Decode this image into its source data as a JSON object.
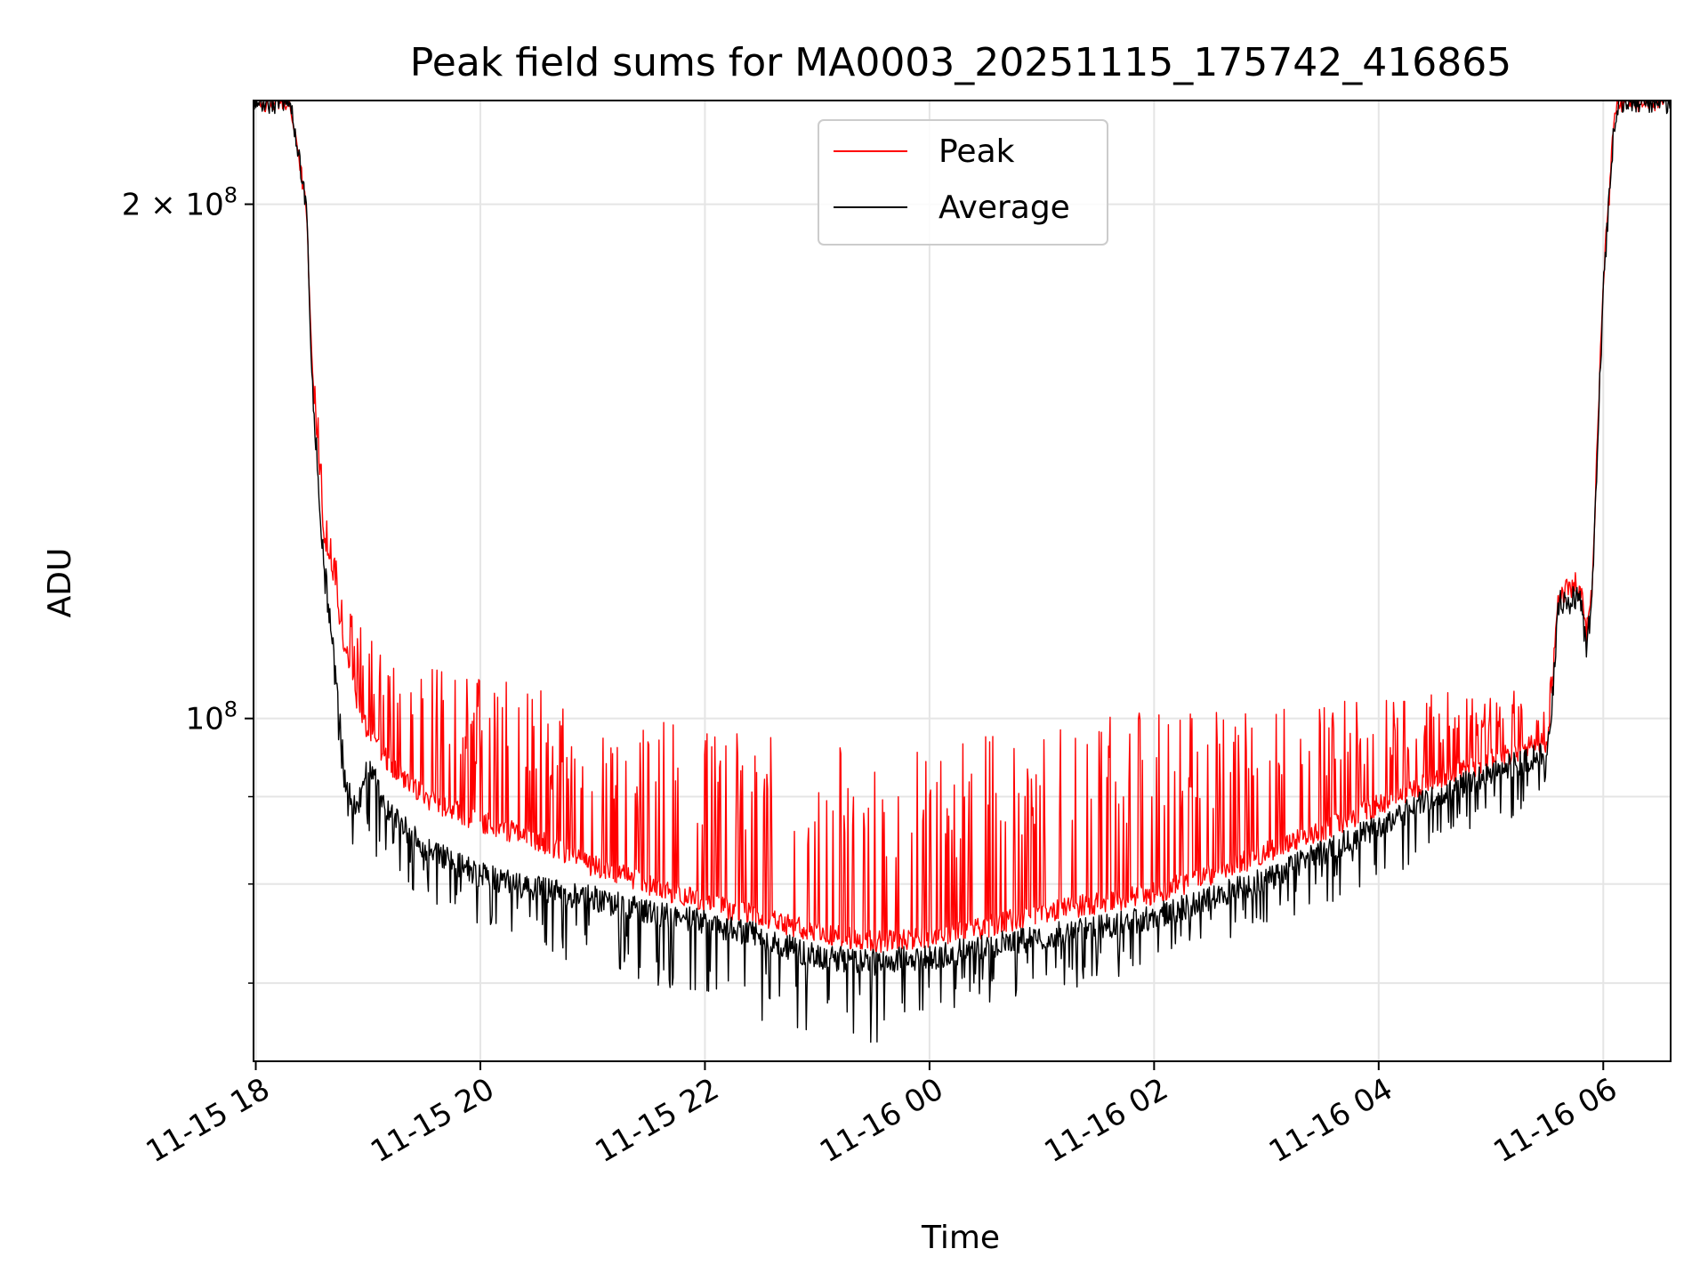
{
  "chart_data": {
    "type": "line",
    "title": "Peak field sums for MA0003_20251115_175742_416865",
    "xlabel": "Time",
    "ylabel": "ADU",
    "y_scale": "log",
    "ylim": [
      63000000,
      230000000
    ],
    "xlim_hours": [
      -0.02,
      12.6
    ],
    "x_ticks": [
      {
        "hour": 0,
        "label": "11-15 18"
      },
      {
        "hour": 2,
        "label": "11-15 20"
      },
      {
        "hour": 4,
        "label": "11-15 22"
      },
      {
        "hour": 6,
        "label": "11-16 00"
      },
      {
        "hour": 8,
        "label": "11-16 02"
      },
      {
        "hour": 10,
        "label": "11-16 04"
      },
      {
        "hour": 12,
        "label": "11-16 06"
      }
    ],
    "y_major_ticks": [
      {
        "value": 100000000,
        "base": "10",
        "exp": "8",
        "coef": ""
      },
      {
        "value": 200000000,
        "base": "10",
        "exp": "8",
        "coef": "2 × "
      }
    ],
    "y_minor_ticks": [
      70000000,
      80000000,
      90000000
    ],
    "legend": {
      "position": "upper center",
      "entries": [
        {
          "label": "Peak",
          "color": "#ff0000"
        },
        {
          "label": "Average",
          "color": "#000000"
        }
      ]
    },
    "series": [
      {
        "name": "Peak",
        "color": "#ff0000",
        "x_hours": [
          0.0,
          0.3,
          0.45,
          0.5,
          0.6,
          0.7,
          0.8,
          0.9,
          1.0,
          1.2,
          1.5,
          2.0,
          2.5,
          3.0,
          3.5,
          4.0,
          4.5,
          5.0,
          5.5,
          6.0,
          6.5,
          7.0,
          7.5,
          8.0,
          8.5,
          9.0,
          9.5,
          10.0,
          10.5,
          11.0,
          11.5,
          11.55,
          11.6,
          11.7,
          11.8,
          11.85,
          11.9,
          12.0,
          12.1,
          12.15,
          12.6
        ],
        "values": [
          230000000,
          230000000,
          200000000,
          160000000,
          130000000,
          118000000,
          110000000,
          102000000,
          98000000,
          94000000,
          90000000,
          87000000,
          85000000,
          82000000,
          80000000,
          78000000,
          76500000,
          75000000,
          74000000,
          74500000,
          75500000,
          77000000,
          78000000,
          79000000,
          81000000,
          83500000,
          86000000,
          89000000,
          92000000,
          94500000,
          97000000,
          105000000,
          118000000,
          119000000,
          119000000,
          112000000,
          119000000,
          180000000,
          225000000,
          230000000,
          230000000
        ],
        "spike_max": [
          230000000,
          230000000,
          200000000,
          165000000,
          140000000,
          125000000,
          118000000,
          114000000,
          112000000,
          110000000,
          108000000,
          106000000,
          104000000,
          102000000,
          100000000,
          99000000,
          98000000,
          97000000,
          97000000,
          97000000,
          98000000,
          99000000,
          100000000,
          101000000,
          101500000,
          102000000,
          102500000,
          103000000,
          103500000,
          104000000,
          104000000,
          108000000,
          121000000,
          122000000,
          122000000,
          115000000,
          121000000,
          180000000,
          225000000,
          230000000,
          230000000
        ]
      },
      {
        "name": "Average",
        "color": "#000000",
        "x_hours": [
          0.0,
          0.3,
          0.45,
          0.5,
          0.6,
          0.7,
          0.8,
          0.9,
          1.0,
          1.2,
          1.5,
          2.0,
          2.5,
          3.0,
          3.5,
          4.0,
          4.5,
          5.0,
          5.5,
          6.0,
          6.5,
          7.0,
          7.5,
          8.0,
          8.5,
          9.0,
          9.5,
          10.0,
          10.5,
          11.0,
          11.5,
          11.55,
          11.6,
          11.7,
          11.8,
          11.85,
          11.9,
          12.0,
          12.1,
          12.15,
          12.6
        ],
        "values": [
          230000000,
          230000000,
          200000000,
          158000000,
          125000000,
          108000000,
          92000000,
          88000000,
          94000000,
          88000000,
          84000000,
          81000000,
          79500000,
          78500000,
          77000000,
          76000000,
          74500000,
          72500000,
          72000000,
          72500000,
          73500000,
          74500000,
          75500000,
          76500000,
          78500000,
          80500000,
          83500000,
          86500000,
          90000000,
          93000000,
          95500000,
          103000000,
          117000000,
          117500000,
          117500000,
          110000000,
          117500000,
          178000000,
          224000000,
          230000000,
          230000000
        ],
        "dip_min": [
          230000000,
          230000000,
          200000000,
          156000000,
          122000000,
          102000000,
          86000000,
          83000000,
          84000000,
          81000000,
          78000000,
          75000000,
          73000000,
          71500000,
          70000000,
          68500000,
          66500000,
          65000000,
          64500000,
          66000000,
          67500000,
          69000000,
          70000000,
          71500000,
          73500000,
          75500000,
          77500000,
          80000000,
          83000000,
          86000000,
          89000000,
          100000000,
          115000000,
          115000000,
          115000000,
          108000000,
          115000000,
          178000000,
          224000000,
          230000000,
          230000000
        ]
      }
    ]
  }
}
